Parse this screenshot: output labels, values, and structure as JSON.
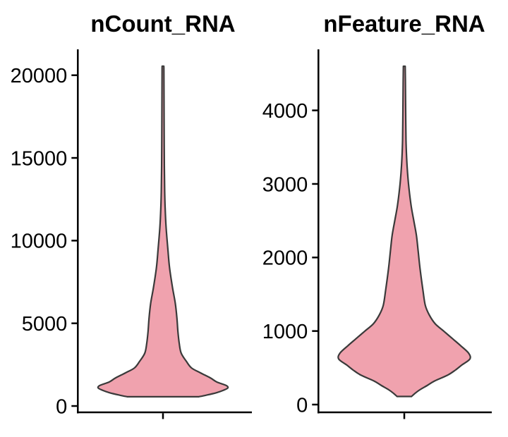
{
  "figure": {
    "background_color": "#FFFFFF",
    "text_color": "#000000",
    "axis_color": "#000000"
  },
  "chart_data": [
    {
      "type": "violin",
      "title": "nCount_RNA",
      "xlabel": "",
      "ylabel": "",
      "categories": [
        ""
      ],
      "y_ticks": [
        0,
        5000,
        10000,
        15000,
        20000
      ],
      "ylim": [
        -425,
        21565
      ],
      "value_range": [
        560,
        20550
      ],
      "fill_color": "#F0A2AE",
      "outline_color": "#3A3A3A",
      "density_profile": [
        [
          560,
          0.55
        ],
        [
          650,
          0.66
        ],
        [
          800,
          0.82
        ],
        [
          950,
          0.93
        ],
        [
          1100,
          1.0
        ],
        [
          1250,
          0.97
        ],
        [
          1450,
          0.83
        ],
        [
          1700,
          0.73
        ],
        [
          2000,
          0.58
        ],
        [
          2300,
          0.44
        ],
        [
          2700,
          0.36
        ],
        [
          3200,
          0.28
        ],
        [
          3800,
          0.25
        ],
        [
          4500,
          0.23
        ],
        [
          5300,
          0.215
        ],
        [
          6200,
          0.19
        ],
        [
          7200,
          0.145
        ],
        [
          8400,
          0.1
        ],
        [
          9500,
          0.075
        ],
        [
          10800,
          0.048
        ],
        [
          12000,
          0.033
        ],
        [
          13000,
          0.026
        ],
        [
          14500,
          0.021
        ],
        [
          16500,
          0.018
        ],
        [
          18500,
          0.016
        ],
        [
          20300,
          0.014
        ],
        [
          20550,
          0.013
        ]
      ]
    },
    {
      "type": "violin",
      "title": "nFeature_RNA",
      "xlabel": "",
      "ylabel": "",
      "categories": [
        ""
      ],
      "y_ticks": [
        0,
        1000,
        2000,
        3000,
        4000
      ],
      "ylim": [
        -115,
        4830
      ],
      "value_range": [
        110,
        4600
      ],
      "fill_color": "#F0A2AE",
      "outline_color": "#3A3A3A",
      "density_profile": [
        [
          110,
          0.11
        ],
        [
          150,
          0.16
        ],
        [
          200,
          0.235
        ],
        [
          260,
          0.35
        ],
        [
          320,
          0.46
        ],
        [
          400,
          0.66
        ],
        [
          470,
          0.78
        ],
        [
          540,
          0.88
        ],
        [
          620,
          1.0
        ],
        [
          700,
          0.98
        ],
        [
          800,
          0.86
        ],
        [
          900,
          0.73
        ],
        [
          1000,
          0.6
        ],
        [
          1100,
          0.47
        ],
        [
          1220,
          0.38
        ],
        [
          1350,
          0.32
        ],
        [
          1550,
          0.285
        ],
        [
          1850,
          0.24
        ],
        [
          2100,
          0.21
        ],
        [
          2300,
          0.185
        ],
        [
          2500,
          0.145
        ],
        [
          2700,
          0.105
        ],
        [
          2950,
          0.07
        ],
        [
          3150,
          0.05
        ],
        [
          3350,
          0.036
        ],
        [
          3600,
          0.026
        ],
        [
          4000,
          0.021
        ],
        [
          4400,
          0.017
        ],
        [
          4600,
          0.014
        ]
      ]
    }
  ]
}
